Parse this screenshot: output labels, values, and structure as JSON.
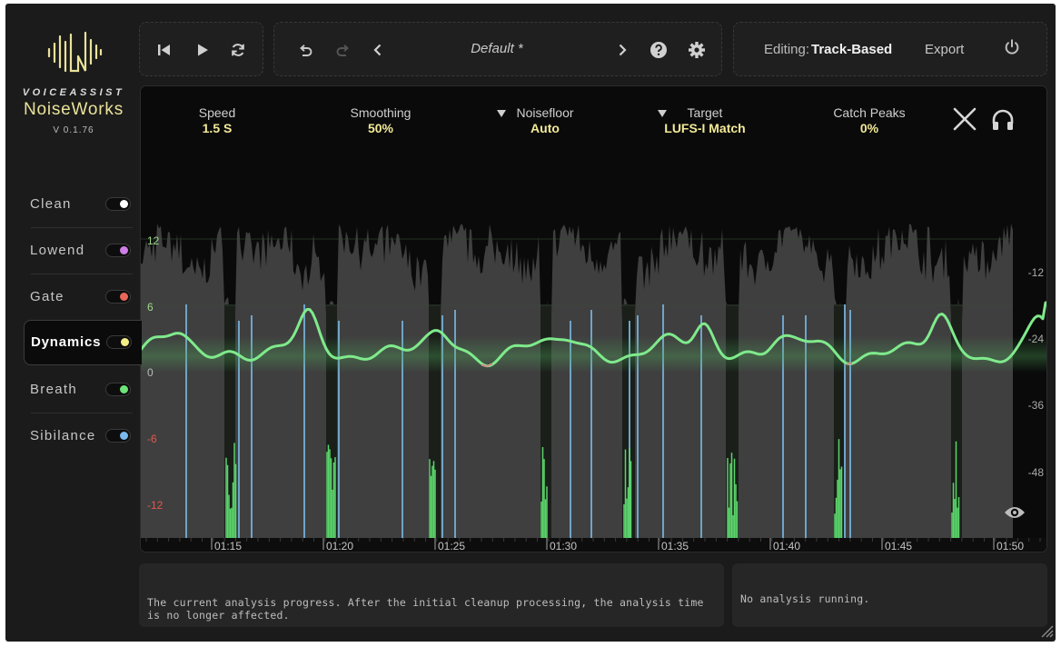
{
  "logo": {
    "brand": "VOICEASSIST",
    "product": "NoiseWorks",
    "version": "V 0.1.76",
    "icon": "soundwave-logo-icon"
  },
  "toolbar": {
    "transport": [
      "skip-back-icon",
      "play-icon",
      "loop-icon"
    ],
    "history": [
      "undo-icon",
      "redo-icon"
    ],
    "preset_prev_icon": "chevron-left-icon",
    "preset_name": "Default *",
    "preset_next_icon": "chevron-right-icon",
    "help_icon": "help-icon",
    "settings_icon": "gear-icon",
    "editing_label": "Editing:",
    "editing_value": "Track-Based",
    "export_label": "Export",
    "power_icon": "power-icon"
  },
  "modules": [
    {
      "label": "Clean",
      "color": "#ffffff",
      "active": false
    },
    {
      "label": "Lowend",
      "color": "#cf7ee8",
      "active": false
    },
    {
      "label": "Gate",
      "color": "#e8665a",
      "active": false
    },
    {
      "label": "Dynamics",
      "color": "#f4ee87",
      "active": true
    },
    {
      "label": "Breath",
      "color": "#6fe37a",
      "active": false
    },
    {
      "label": "Sibilance",
      "color": "#7ab9ec",
      "active": false
    }
  ],
  "params": [
    {
      "label": "Speed",
      "value": "1.5 S",
      "dropdown": false
    },
    {
      "label": "Smoothing",
      "value": "50%",
      "dropdown": false
    },
    {
      "label": "Noisefloor",
      "value": "Auto",
      "dropdown": true
    },
    {
      "label": "Target",
      "value": "LUFS-I Match",
      "dropdown": true
    },
    {
      "label": "Catch Peaks",
      "value": "0%",
      "dropdown": false
    }
  ],
  "graph": {
    "left_axis": [
      "12",
      "6",
      "0",
      "-6",
      "-12"
    ],
    "left_axis_colors": {
      "positive": "#9fd98c",
      "zero": "#bbbbbb",
      "negative": "#e2584d"
    },
    "right_axis": [
      "-12",
      "-24",
      "-36",
      "-48"
    ],
    "time_ticks": [
      "01:15",
      "01:20",
      "01:25",
      "01:30",
      "01:35",
      "01:40",
      "01:45",
      "01:50"
    ],
    "gain_curve_color": "#7fea8c",
    "reduction_color": "#d08a8a",
    "marker_color": "#6fa4c9"
  },
  "status": {
    "left": "The current analysis progress. After the initial cleanup processing, the analysis time is no longer affected.",
    "right": "No analysis running."
  }
}
